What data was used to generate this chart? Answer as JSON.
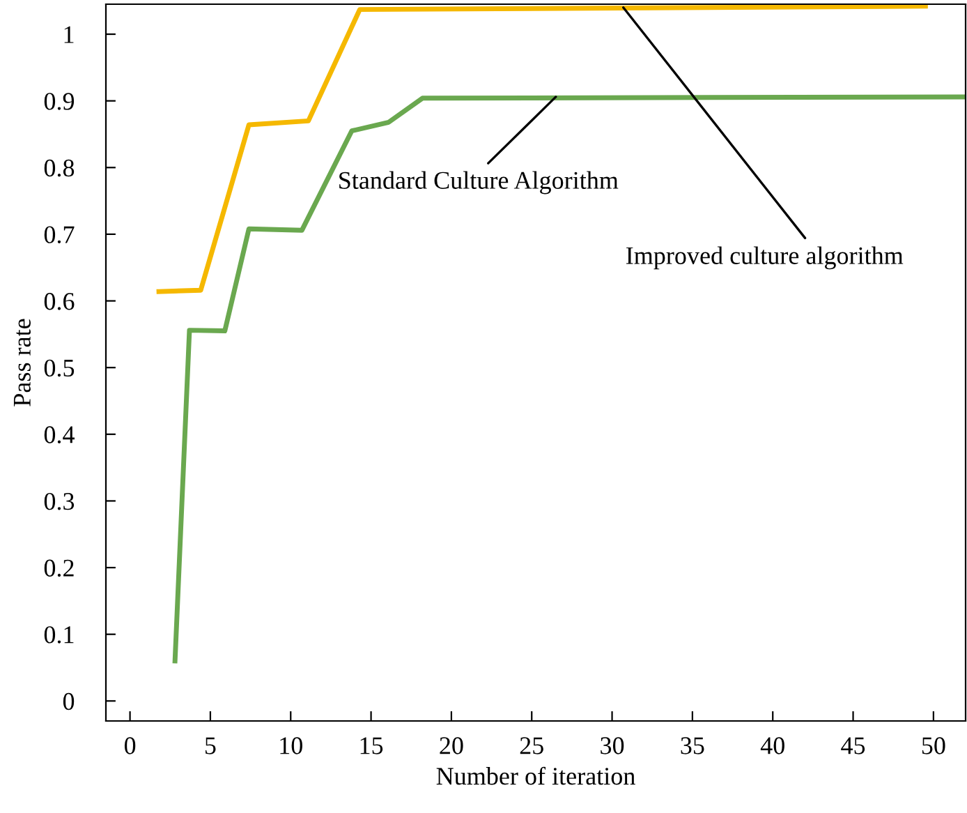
{
  "chart_data": {
    "type": "line",
    "xlabel": "Number of iteration",
    "ylabel": "Pass rate",
    "xlim": [
      -1.5,
      52
    ],
    "ylim": [
      -0.03,
      1.045
    ],
    "xticks": [
      0,
      5,
      10,
      15,
      20,
      25,
      30,
      35,
      40,
      45,
      50
    ],
    "yticks": [
      0,
      0.1,
      0.2,
      0.3,
      0.4,
      0.5,
      0.6,
      0.7,
      0.8,
      0.9,
      1
    ],
    "grid": false,
    "marker": "none",
    "line_style": "solid",
    "series": [
      {
        "color": "#f5b800",
        "x": [
          1.8,
          4.4,
          7.4,
          11.1,
          14.3,
          49.5
        ],
        "values": [
          0.614,
          0.616,
          0.864,
          0.87,
          1.037,
          1.042
        ]
      },
      {
        "color": "#6aa84f",
        "x": [
          2.8,
          3.7,
          5.9,
          7.4,
          10.7,
          13.8,
          16.1,
          18.2,
          52
        ],
        "values": [
          0.06,
          0.556,
          0.555,
          0.708,
          0.706,
          0.855,
          0.868,
          0.904,
          0.906
        ]
      }
    ],
    "annotations": [
      {
        "text": "Standard Culture Algorithm",
        "x": 26.5,
        "y": 0.906
      },
      {
        "text": "Improved culture algorithm",
        "x": 30.7,
        "y": 1.04
      }
    ]
  }
}
